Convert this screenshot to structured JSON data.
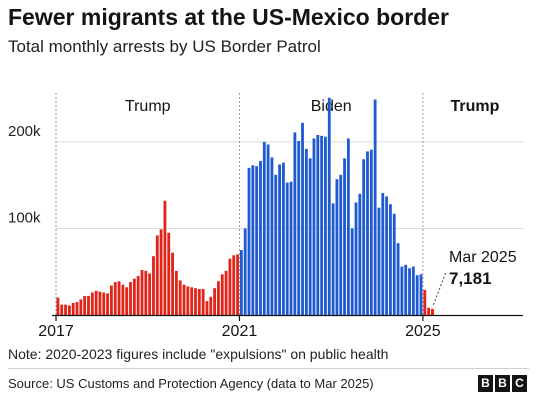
{
  "title": "Fewer migrants at the US-Mexico border",
  "subtitle": "Total monthly arrests by US Border Patrol",
  "note": "Note: 2020-2023 figures include \"expulsions\" on public health",
  "source": "Source: US Customs and Protection Agency (data to Mar 2025)",
  "logo": [
    "B",
    "B",
    "C"
  ],
  "colors": {
    "trump": "#e2231a",
    "biden": "#1f5bd0",
    "grid": "#dcdcdc",
    "axis": "#141414",
    "text": "#222222"
  },
  "chart_data": {
    "type": "bar",
    "title": "Fewer migrants at the US-Mexico border",
    "subtitle": "Total monthly arrests by US Border Patrol",
    "ylim": [
      0,
      260000
    ],
    "yticks": [
      {
        "value": 100000,
        "label": "100k"
      },
      {
        "value": 200000,
        "label": "200k"
      }
    ],
    "xticks": [
      {
        "index": 0,
        "label": "2017"
      },
      {
        "index": 48,
        "label": "2021"
      },
      {
        "index": 96,
        "label": "2025"
      }
    ],
    "start_month": "2017-01",
    "eras": [
      {
        "label": "Trump",
        "start_index": 0,
        "end_index": 48,
        "bold": false
      },
      {
        "label": "Biden",
        "start_index": 48,
        "end_index": 96,
        "bold": false
      },
      {
        "label": "Trump",
        "start_index": 96,
        "end_index": 106,
        "bold": true
      }
    ],
    "series": [
      {
        "name": "Trump",
        "color": "#e2231a",
        "values": [
          20000,
          12000,
          12000,
          11000,
          14000,
          15000,
          18000,
          22000,
          22000,
          26000,
          28000,
          27000,
          26000,
          25000,
          34000,
          38000,
          39000,
          35000,
          32000,
          38000,
          42000,
          45000,
          52000,
          51000,
          48000,
          68000,
          92000,
          99000,
          132000,
          95000,
          72000,
          51000,
          40000,
          35000,
          33000,
          32000,
          31000,
          30000,
          30000,
          16000,
          21000,
          31000,
          39000,
          47000,
          51000,
          65000,
          69000,
          70000
        ]
      },
      {
        "name": "Biden",
        "color": "#1f5bd0",
        "values": [
          75000,
          100000,
          170000,
          173000,
          172000,
          178000,
          200000,
          197000,
          182000,
          162000,
          174000,
          176000,
          153000,
          154000,
          211000,
          201000,
          222000,
          192000,
          181000,
          204000,
          208000,
          207000,
          206000,
          251000,
          129000,
          157000,
          162000,
          181000,
          204000,
          100000,
          130000,
          140000,
          180000,
          189000,
          191000,
          249000,
          124000,
          141000,
          137000,
          128000,
          117000,
          83000,
          56000,
          58000,
          54000,
          56000,
          46000,
          47000
        ]
      },
      {
        "name": "Trump",
        "color": "#e2231a",
        "values": [
          29000,
          8347,
          7181
        ]
      }
    ],
    "annotation": {
      "index": 98,
      "label": "Mar 2025",
      "value_label": "7,181",
      "value": 7181
    }
  }
}
